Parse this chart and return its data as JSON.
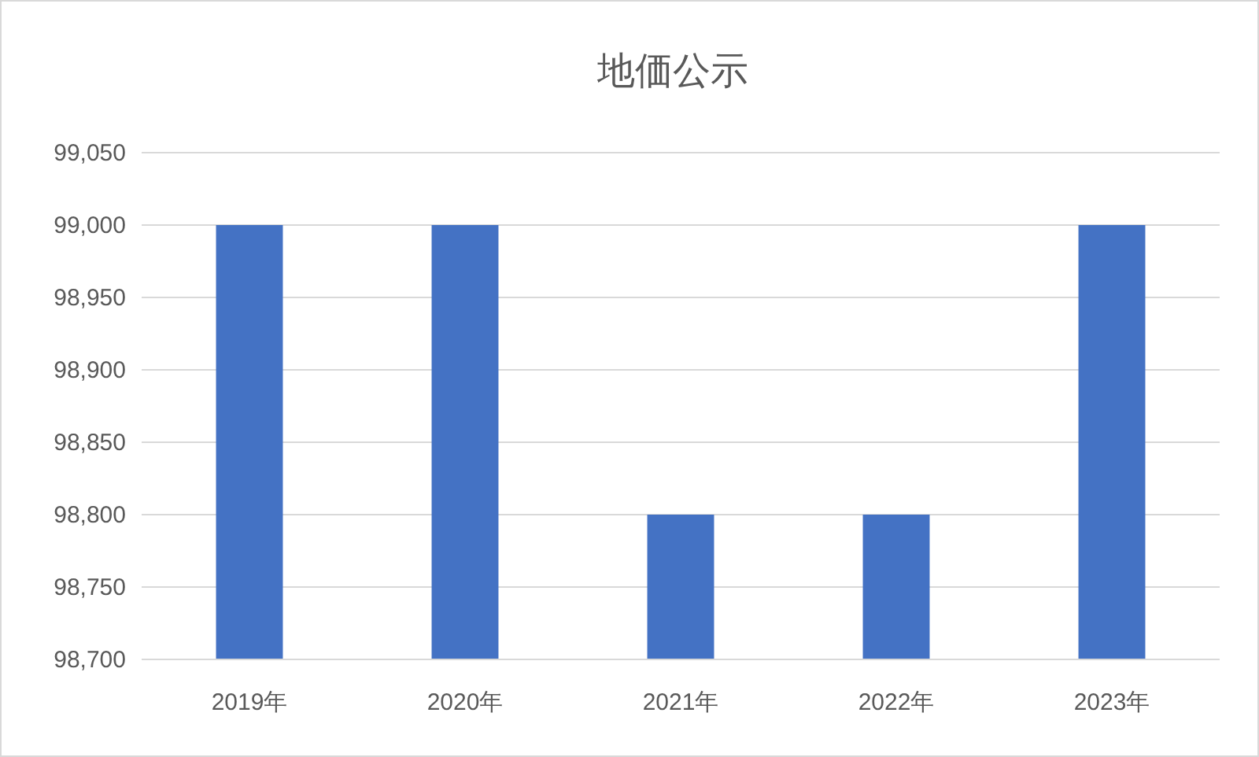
{
  "chart_data": {
    "type": "bar",
    "title": "地価公示",
    "categories": [
      "2019年",
      "2020年",
      "2021年",
      "2022年",
      "2023年"
    ],
    "values": [
      99000,
      99000,
      98800,
      98800,
      99000
    ],
    "color": "#4472c4",
    "ylim": [
      98700,
      99050
    ],
    "yticks": [
      {
        "value": 98700,
        "label": "98,700"
      },
      {
        "value": 98750,
        "label": "98,750"
      },
      {
        "value": 98800,
        "label": "98,800"
      },
      {
        "value": 98850,
        "label": "98,850"
      },
      {
        "value": 98900,
        "label": "98,900"
      },
      {
        "value": 98950,
        "label": "98,950"
      },
      {
        "value": 99000,
        "label": "99,000"
      },
      {
        "value": 99050,
        "label": "99,050"
      }
    ],
    "grid": "y"
  }
}
